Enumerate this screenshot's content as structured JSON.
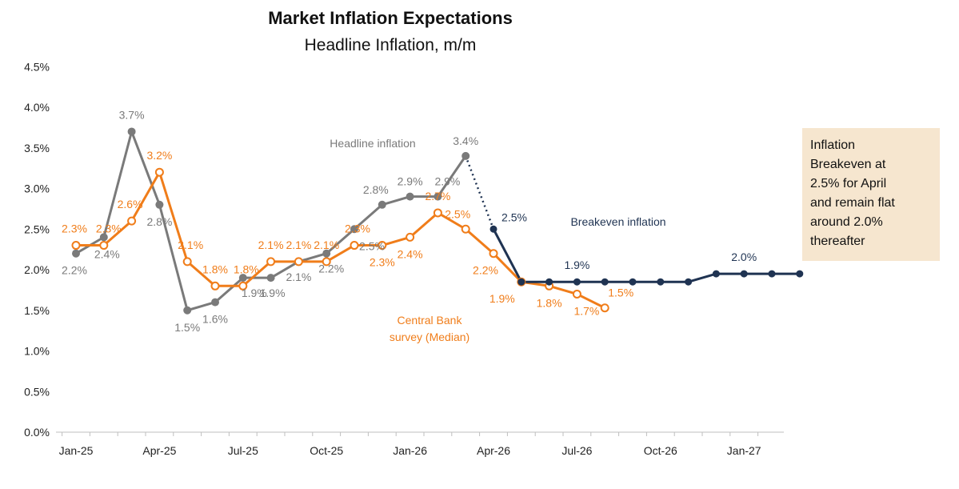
{
  "chart_data": {
    "type": "line",
    "title": "Market Inflation Expectations",
    "subtitle": "Headline Inflation, m/m",
    "x_ticks": [
      "Jan-25",
      "Apr-25",
      "Jul-25",
      "Oct-25",
      "Jan-26",
      "Apr-26",
      "Jul-26",
      "Oct-26",
      "Jan-27"
    ],
    "y_ticks": [
      "0.0%",
      "0.5%",
      "1.0%",
      "1.5%",
      "2.0%",
      "2.5%",
      "3.0%",
      "3.5%",
      "4.0%",
      "4.5%"
    ],
    "ylim": [
      0,
      4.5
    ],
    "grid": false,
    "series": [
      {
        "name": "Headline inflation",
        "color": "#7a7a7a",
        "marker": "filled",
        "start_month_index": 0,
        "values": [
          2.2,
          2.4,
          3.7,
          2.8,
          1.5,
          1.6,
          1.9,
          1.9,
          2.1,
          2.2,
          2.5,
          2.8,
          2.9,
          2.9,
          3.4
        ],
        "labels": [
          "2.2%",
          "2.4%",
          "3.7%",
          "2.8%",
          "1.5%",
          "1.6%",
          "1.9%",
          "1.9%",
          "2.1%",
          "2.2%",
          "2.5%",
          "2.8%",
          "2.9%",
          "2.9%",
          "3.4%"
        ]
      },
      {
        "name": "Central Bank survey (Median)",
        "color": "#f07d1a",
        "marker": "open",
        "start_month_index": 0,
        "values": [
          2.3,
          2.3,
          2.6,
          3.2,
          2.1,
          1.8,
          1.8,
          2.1,
          2.1,
          2.1,
          2.3,
          2.3,
          2.4,
          2.7,
          2.5,
          2.2,
          1.85,
          1.8,
          1.7,
          1.53
        ],
        "labels": [
          "2.3%",
          "2.3%",
          "2.6%",
          "3.2%",
          "2.1%",
          "1.8%",
          "1.8%",
          "2.1%",
          "2.1%",
          "2.1%",
          "2.3%",
          "2.3%",
          "2.4%",
          "2.7%",
          "2.5%",
          "2.2%",
          "1.9%",
          "1.8%",
          "1.7%",
          "1.5%"
        ]
      },
      {
        "name": "Breakeven inflation",
        "color": "#1f3352",
        "marker": "filled",
        "start_month_index": 15,
        "values": [
          2.5,
          1.85,
          1.85,
          1.85,
          1.85,
          1.85,
          1.85,
          1.85,
          1.95,
          1.95,
          1.95,
          1.95
        ],
        "labels": [
          "2.5%",
          "",
          "",
          "1.9%",
          "",
          "",
          "",
          "",
          "",
          "2.0%",
          "",
          ""
        ]
      }
    ],
    "series_labels": {
      "headline": "Headline inflation",
      "survey_line1": "Central Bank",
      "survey_line2": "survey (Median)",
      "breakeven": "Breakeven inflation"
    },
    "callout": [
      "Inflation",
      "Breakeven at",
      "2.5% for April",
      "and remain flat",
      "around 2.0%",
      "thereafter"
    ]
  }
}
